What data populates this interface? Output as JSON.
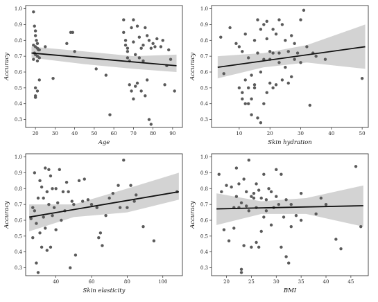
{
  "colors": {
    "point": "#5a5a5a",
    "fit_line": "#111111",
    "ci_band": "#d3d3d3",
    "background": "#ffffff"
  },
  "chart_data": [
    {
      "type": "scatter",
      "title": "",
      "xlabel": "Age",
      "ylabel": "Accuracy",
      "xlim": [
        15,
        95
      ],
      "ylim": [
        0.25,
        1.02
      ],
      "xticks": [
        20,
        30,
        40,
        50,
        60,
        70,
        80,
        90
      ],
      "yticks": [
        0.3,
        0.4,
        0.5,
        0.6,
        0.7,
        0.8,
        0.9,
        1.0
      ],
      "x": [
        19,
        19.5,
        20,
        20,
        20.5,
        21,
        19,
        20,
        21,
        21.5,
        22,
        19.5,
        20,
        21,
        22,
        19,
        21,
        20,
        21,
        20,
        20,
        22,
        25,
        36,
        38,
        39,
        40,
        29,
        51,
        56,
        58,
        65,
        65,
        66,
        66,
        67,
        67,
        67,
        68,
        68,
        69,
        69,
        70,
        70,
        70,
        71,
        71,
        72,
        72,
        73,
        73,
        74,
        74,
        75,
        75,
        76,
        76,
        77,
        77,
        78,
        78,
        79,
        79,
        80,
        81,
        82,
        84,
        85,
        86,
        87,
        88,
        89,
        91
      ],
      "y": [
        0.98,
        0.89,
        0.86,
        0.83,
        0.8,
        0.78,
        0.77,
        0.76,
        0.75,
        0.74,
        0.74,
        0.72,
        0.71,
        0.7,
        0.69,
        0.68,
        0.67,
        0.5,
        0.48,
        0.45,
        0.44,
        0.55,
        0.76,
        0.78,
        0.85,
        0.85,
        0.73,
        0.56,
        0.62,
        0.58,
        0.33,
        0.93,
        0.85,
        0.8,
        0.77,
        0.75,
        0.73,
        0.69,
        0.67,
        0.52,
        0.88,
        0.48,
        0.93,
        0.79,
        0.43,
        0.71,
        0.51,
        0.89,
        0.53,
        0.69,
        0.82,
        0.75,
        0.48,
        0.77,
        0.67,
        0.88,
        0.45,
        0.83,
        0.55,
        0.8,
        0.3,
        0.75,
        0.27,
        0.78,
        0.76,
        0.81,
        0.76,
        0.8,
        0.52,
        0.64,
        0.74,
        0.68,
        0.48
      ],
      "fit": {
        "x": [
          18,
          92
        ],
        "y": [
          0.72,
          0.64
        ]
      },
      "ci_lower": [
        0.69,
        0.65,
        0.62,
        0.6
      ],
      "ci_upper": [
        0.76,
        0.73,
        0.7,
        0.71
      ],
      "ci_x": [
        18,
        45,
        70,
        92
      ]
    },
    {
      "type": "scatter",
      "title": "",
      "xlabel": "Skin hydration",
      "ylabel": "Accuracy",
      "xlim": [
        1,
        52
      ],
      "ylim": [
        0.25,
        1.02
      ],
      "xticks": [
        10,
        20,
        30,
        40,
        50
      ],
      "yticks": [
        0.3,
        0.4,
        0.5,
        0.6,
        0.7,
        0.8,
        0.9,
        1.0
      ],
      "x": [
        4,
        5,
        7,
        9,
        10,
        10,
        11,
        11,
        11,
        12,
        12,
        12,
        13,
        13,
        13,
        14,
        14,
        14,
        15,
        15,
        15,
        16,
        16,
        16,
        17,
        17,
        17,
        18,
        18,
        18,
        19,
        19,
        19,
        20,
        20,
        20,
        21,
        21,
        21,
        22,
        22,
        23,
        23,
        23,
        24,
        24,
        25,
        25,
        26,
        26,
        27,
        27,
        28,
        28,
        29,
        30,
        30,
        31,
        32,
        33,
        34,
        35,
        38,
        50
      ],
      "y": [
        0.82,
        0.59,
        0.88,
        0.78,
        0.76,
        0.5,
        0.73,
        0.47,
        0.43,
        0.84,
        0.55,
        0.4,
        0.69,
        0.5,
        0.4,
        0.58,
        0.43,
        0.33,
        0.8,
        0.52,
        0.5,
        0.93,
        0.72,
        0.31,
        0.87,
        0.6,
        0.28,
        0.9,
        0.68,
        0.4,
        0.92,
        0.81,
        0.47,
        0.73,
        0.68,
        0.53,
        0.87,
        0.72,
        0.5,
        0.84,
        0.52,
        0.93,
        0.72,
        0.66,
        0.9,
        0.55,
        0.8,
        0.63,
        0.73,
        0.53,
        0.83,
        0.57,
        0.78,
        0.68,
        0.72,
        0.93,
        0.66,
        0.99,
        0.76,
        0.39,
        0.72,
        0.7,
        0.68,
        0.56
      ],
      "fit": {
        "x": [
          3,
          51
        ],
        "y": [
          0.63,
          0.76
        ]
      },
      "ci_lower": [
        0.56,
        0.63,
        0.66,
        0.62
      ],
      "ci_upper": [
        0.7,
        0.72,
        0.77,
        0.9
      ],
      "ci_x": [
        3,
        18,
        32,
        51
      ]
    },
    {
      "type": "scatter",
      "title": "",
      "xlabel": "Skin elasticity",
      "ylabel": "Accuracy",
      "xlim": [
        23,
        111
      ],
      "ylim": [
        0.25,
        1.02
      ],
      "xticks": [
        40,
        60,
        80,
        100
      ],
      "yticks": [
        0.3,
        0.4,
        0.5,
        0.6,
        0.7,
        0.8,
        0.9,
        1.0
      ],
      "x": [
        26,
        27,
        27,
        28,
        28,
        29,
        29,
        30,
        30,
        31,
        31,
        32,
        32,
        33,
        33,
        34,
        34,
        35,
        35,
        36,
        36,
        37,
        37,
        38,
        38,
        39,
        40,
        40,
        41,
        42,
        43,
        44,
        45,
        46,
        47,
        48,
        49,
        50,
        51,
        53,
        55,
        56,
        58,
        60,
        63,
        64,
        65,
        66,
        68,
        70,
        72,
        75,
        76,
        78,
        80,
        82,
        84,
        85,
        89,
        95,
        108
      ],
      "y": [
        0.61,
        0.68,
        0.49,
        0.9,
        0.66,
        0.58,
        0.33,
        0.74,
        0.27,
        0.85,
        0.52,
        0.81,
        0.43,
        0.74,
        0.62,
        0.93,
        0.55,
        0.78,
        0.41,
        0.92,
        0.7,
        0.88,
        0.43,
        0.8,
        0.63,
        0.68,
        0.8,
        0.54,
        0.71,
        0.92,
        0.6,
        0.78,
        0.66,
        0.84,
        0.78,
        0.3,
        0.72,
        0.7,
        0.38,
        0.85,
        0.72,
        0.86,
        0.73,
        0.7,
        0.68,
        0.49,
        0.52,
        0.44,
        0.63,
        0.74,
        0.77,
        0.82,
        0.68,
        0.98,
        0.68,
        0.82,
        0.72,
        0.76,
        0.56,
        0.47,
        0.78
      ],
      "fit": {
        "x": [
          25,
          109
        ],
        "y": [
          0.62,
          0.78
        ]
      },
      "ci_lower": [
        0.53,
        0.62,
        0.65,
        0.73
      ],
      "ci_upper": [
        0.7,
        0.7,
        0.8,
        0.9
      ],
      "ci_x": [
        25,
        50,
        80,
        109
      ]
    },
    {
      "type": "scatter",
      "title": "",
      "xlabel": "BMI",
      "ylabel": "Accuracy",
      "xlim": [
        17,
        48.5
      ],
      "ylim": [
        0.25,
        1.02
      ],
      "xticks": [
        20,
        25,
        30,
        35,
        40,
        45
      ],
      "yticks": [
        0.3,
        0.4,
        0.5,
        0.6,
        0.7,
        0.8,
        0.9,
        1.0
      ],
      "x": [
        18.5,
        19,
        19.5,
        20,
        20.5,
        21,
        21.5,
        21.5,
        22,
        22,
        22.5,
        22.5,
        23,
        23,
        23,
        23.5,
        23.5,
        24,
        24,
        24.5,
        24.5,
        25,
        25,
        25.5,
        25.5,
        26,
        26,
        26,
        26.5,
        26.5,
        27,
        27,
        27.5,
        27.5,
        28,
        28,
        28.5,
        29,
        29,
        29.5,
        30,
        30,
        30.5,
        31,
        31,
        31.5,
        32,
        32,
        32.5,
        33,
        33,
        34,
        35,
        35,
        38,
        39,
        40,
        42,
        43,
        46,
        47
      ],
      "y": [
        0.89,
        0.78,
        0.54,
        0.82,
        0.47,
        0.81,
        0.68,
        0.55,
        0.93,
        0.75,
        0.83,
        0.68,
        0.71,
        0.29,
        0.27,
        0.86,
        0.44,
        0.78,
        0.69,
        0.98,
        0.66,
        0.75,
        0.43,
        0.74,
        0.77,
        0.83,
        0.68,
        0.46,
        0.79,
        0.43,
        0.74,
        0.53,
        0.89,
        0.62,
        0.73,
        0.66,
        0.8,
        0.78,
        0.57,
        0.68,
        0.92,
        0.75,
        0.7,
        0.89,
        0.43,
        0.62,
        0.73,
        0.37,
        0.33,
        0.7,
        0.56,
        0.63,
        0.77,
        0.6,
        0.64,
        0.74,
        0.7,
        0.48,
        0.42,
        0.94,
        0.56
      ],
      "fit": {
        "x": [
          18,
          47.5
        ],
        "y": [
          0.672,
          0.692
        ]
      },
      "ci_lower": [
        0.57,
        0.64,
        0.64,
        0.56
      ],
      "ci_upper": [
        0.77,
        0.72,
        0.74,
        0.82
      ],
      "ci_x": [
        18,
        27,
        36,
        47.5
      ]
    }
  ]
}
